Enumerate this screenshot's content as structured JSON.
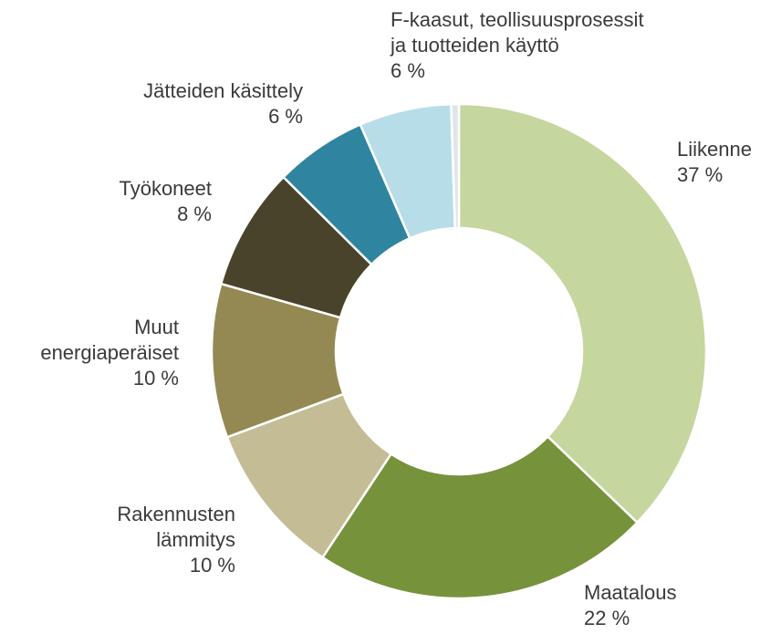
{
  "chart_data": {
    "type": "donut",
    "categories": [
      "Liikenne",
      "Maatalous",
      "Rakennusten\nlämmitys",
      "Muut\nenergiaperäiset",
      "Työkoneet",
      "Jätteiden käsittely",
      "F-kaasut, teollisuusprosessit\nja tuotteiden käyttö",
      null
    ],
    "values": [
      37,
      22,
      10,
      10,
      8,
      6,
      6,
      0.5
    ],
    "value_labels": [
      "37 %",
      "22 %",
      "10 %",
      "10 %",
      "8 %",
      "6 %",
      "6 %",
      null
    ],
    "colors": [
      "#c5d69e",
      "#76933c",
      "#c4bc95",
      "#958953",
      "#4a432b",
      "#2f859f",
      "#b7dde8",
      "#dfe6ea"
    ]
  }
}
